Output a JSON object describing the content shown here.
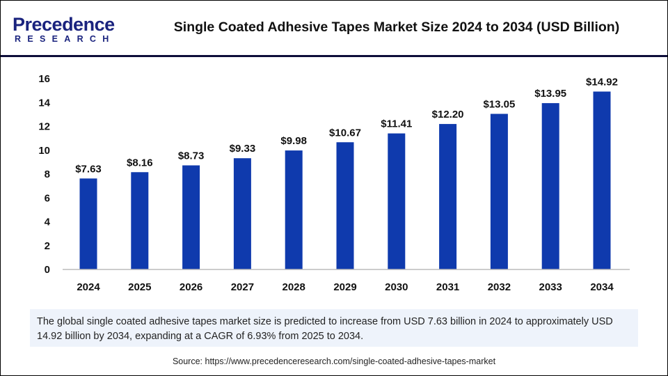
{
  "logo": {
    "main": "Precedence",
    "sub": "RESEARCH"
  },
  "title": "Single Coated Adhesive Tapes Market Size 2024 to 2034 (USD Billion)",
  "chart_data": {
    "type": "bar",
    "categories": [
      "2024",
      "2025",
      "2026",
      "2027",
      "2028",
      "2029",
      "2030",
      "2031",
      "2032",
      "2033",
      "2034"
    ],
    "values": [
      7.63,
      8.16,
      8.73,
      9.33,
      9.98,
      10.67,
      11.41,
      12.2,
      13.05,
      13.95,
      14.92
    ],
    "data_labels": [
      "$7.63",
      "$8.16",
      "$8.73",
      "$9.33",
      "$9.98",
      "$10.67",
      "$11.41",
      "$12.20",
      "$13.05",
      "$13.95",
      "$14.92"
    ],
    "ylim": [
      0,
      16
    ],
    "yticks": [
      0,
      2,
      4,
      6,
      8,
      10,
      12,
      14,
      16
    ],
    "grid": false,
    "bar_color": "#0f3aad"
  },
  "note": "The global single coated adhesive tapes market size is predicted to increase from USD 7.63 billion in 2024 to approximately USD 14.92 billion by 2034, expanding at a CAGR of 6.93% from 2025 to 2034.",
  "source": "Source: https://www.precedenceresearch.com/single-coated-adhesive-tapes-market"
}
